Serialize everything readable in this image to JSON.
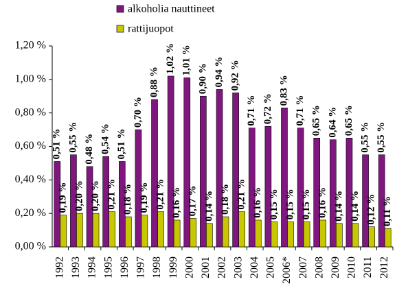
{
  "chart_data": {
    "type": "bar",
    "legend": "top",
    "categories": [
      "1992",
      "1993",
      "1994",
      "1995",
      "1996",
      "1997",
      "1998",
      "1999",
      "2000",
      "2001",
      "2002",
      "2003",
      "2004",
      "2005",
      "2006*",
      "2007",
      "2008",
      "2009",
      "2010",
      "2011",
      "2012"
    ],
    "series": [
      {
        "name": "alkoholia nauttineet",
        "color": "#7f177f",
        "values": [
          0.51,
          0.55,
          0.48,
          0.54,
          0.51,
          0.7,
          0.88,
          1.02,
          1.01,
          0.9,
          0.94,
          0.92,
          0.71,
          0.72,
          0.83,
          0.71,
          0.65,
          0.64,
          0.65,
          0.55,
          0.55
        ],
        "value_labels": [
          "0,51 %",
          "0,55 %",
          "0,48 %",
          "0,54 %",
          "0,51 %",
          "0,70 %",
          "0,88 %",
          "1,02 %",
          "1,01 %",
          "0,90 %",
          "0,94 %",
          "0,92 %",
          "0,71 %",
          "0,72 %",
          "0,83 %",
          "0,71 %",
          "0,65 %",
          "0,64 %",
          "0,65 %",
          "0,55 %",
          "0,55 %"
        ]
      },
      {
        "name": "rattijuopot",
        "color": "#c8c800",
        "values": [
          0.19,
          0.2,
          0.2,
          0.21,
          0.18,
          0.19,
          0.21,
          0.16,
          0.17,
          0.14,
          0.18,
          0.21,
          0.16,
          0.15,
          0.15,
          0.15,
          0.16,
          0.14,
          0.14,
          0.12,
          0.11
        ],
        "value_labels": [
          "0,19 %",
          "0,20 %",
          "0,20 %",
          "0,21 %",
          "0,18 %",
          "0,19 %",
          "0,21 %",
          "0,16 %",
          "0,17 %",
          "0,14 %",
          "0,18 %",
          "0,21 %",
          "0,16 %",
          "0,15 %",
          "0,15 %",
          "0,15 %",
          "0,16 %",
          "0,14 %",
          "0,14 %",
          "0,12 %",
          "0,11 %"
        ]
      }
    ],
    "ylim": [
      0,
      1.2
    ],
    "yticks": [
      {
        "value": 0,
        "label": "0,00 %"
      },
      {
        "value": 0.2,
        "label": "0,20 %"
      },
      {
        "value": 0.4,
        "label": "0,40 %"
      },
      {
        "value": 0.6,
        "label": "0,60 %"
      },
      {
        "value": 0.8,
        "label": "0,80 %"
      },
      {
        "value": 1.0,
        "label": "1,00 %"
      },
      {
        "value": 1.2,
        "label": "1,20 %"
      }
    ],
    "grid": false
  }
}
